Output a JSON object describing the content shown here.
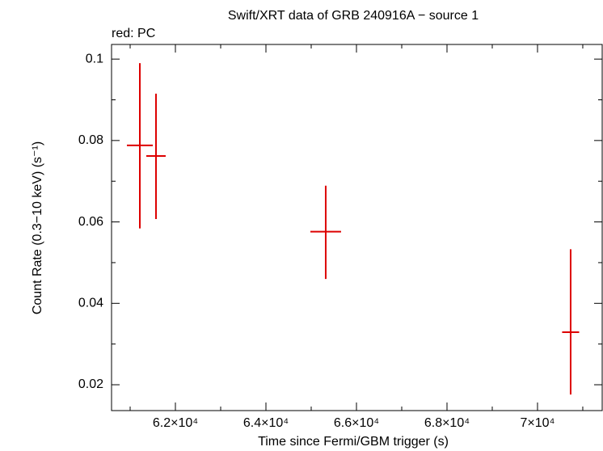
{
  "chart_data": {
    "type": "errorbar",
    "title": "Swift/XRT data of GRB 240916A − source 1",
    "subtitle": "red: PC",
    "x_label": "Time since Fermi/GBM trigger (s)",
    "y_label": "Count Rate (0.3−10 keV) (s⁻¹)",
    "color": "#dd0000",
    "x": [
      61214,
      61571,
      65321,
      70732
    ],
    "xerr": [
      286,
      214,
      339,
      188
    ],
    "values": [
      0.0788,
      0.0762,
      0.0576,
      0.0329
    ],
    "yerr_low": [
      0.0204,
      0.0155,
      0.0116,
      0.0153
    ],
    "yerr_high": [
      0.0202,
      0.0153,
      0.0113,
      0.0204
    ],
    "xlim": [
      60589,
      71429
    ],
    "ylim": [
      0.01365,
      0.1036
    ],
    "xticks": [
      {
        "value": 62000,
        "label": "6.2×10⁴"
      },
      {
        "value": 64000,
        "label": "6.4×10⁴"
      },
      {
        "value": 66000,
        "label": "6.6×10⁴"
      },
      {
        "value": 68000,
        "label": "6.8×10⁴"
      },
      {
        "value": 70000,
        "label": "7×10⁴"
      }
    ],
    "xminorticks": [
      61000,
      63000,
      65000,
      67000,
      69000,
      71000
    ],
    "yticks": [
      0.02,
      0.04,
      0.06,
      0.08,
      0.1
    ],
    "yminorticks": [
      0.03,
      0.05,
      0.07,
      0.09
    ]
  }
}
